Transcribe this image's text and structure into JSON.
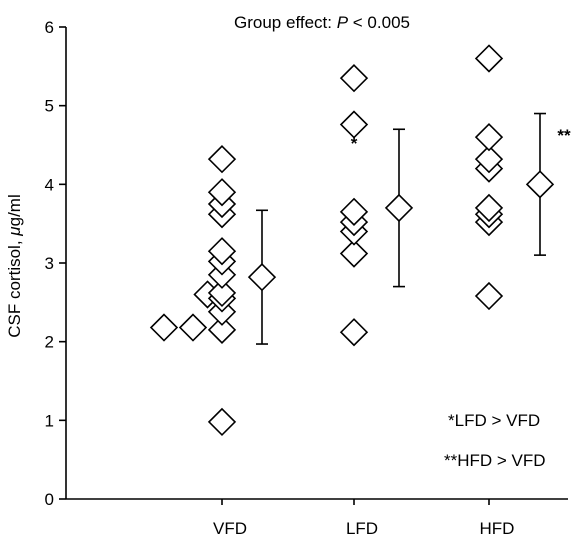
{
  "chart_data": {
    "type": "scatter",
    "title": "Group effect: P < 0.005",
    "title_prefix": "Group effect: ",
    "title_italic": "P",
    "title_suffix": " < 0.005",
    "ylabel_prefix": "CSF cortisol, ",
    "ylabel_greek": "μ",
    "ylabel_suffix": "g/ml",
    "ylim": [
      0,
      6
    ],
    "yticks": [
      "0",
      "1",
      "2",
      "3",
      "4",
      "5",
      "6"
    ],
    "categories": [
      "VFD",
      "LFD",
      "HFD"
    ],
    "grid": false,
    "points": [
      {
        "group": "VFD",
        "offset": -2,
        "y": 2.18
      },
      {
        "group": "VFD",
        "offset": -1,
        "y": 2.18
      },
      {
        "group": "VFD",
        "offset": -0.5,
        "y": 2.6
      },
      {
        "group": "VFD",
        "offset": 0,
        "y": 0.98
      },
      {
        "group": "VFD",
        "offset": 0,
        "y": 2.15
      },
      {
        "group": "VFD",
        "offset": 0,
        "y": 2.38
      },
      {
        "group": "VFD",
        "offset": 0,
        "y": 2.55
      },
      {
        "group": "VFD",
        "offset": 0,
        "y": 2.62
      },
      {
        "group": "VFD",
        "offset": 0,
        "y": 2.85
      },
      {
        "group": "VFD",
        "offset": 0,
        "y": 3.02
      },
      {
        "group": "VFD",
        "offset": 0,
        "y": 3.15
      },
      {
        "group": "VFD",
        "offset": 0,
        "y": 3.62
      },
      {
        "group": "VFD",
        "offset": 0,
        "y": 3.75
      },
      {
        "group": "VFD",
        "offset": 0,
        "y": 3.9
      },
      {
        "group": "VFD",
        "offset": 0,
        "y": 4.32
      },
      {
        "group": "LFD",
        "offset": 0,
        "y": 2.12
      },
      {
        "group": "LFD",
        "offset": 0,
        "y": 3.12
      },
      {
        "group": "LFD",
        "offset": 0,
        "y": 3.4
      },
      {
        "group": "LFD",
        "offset": 0,
        "y": 3.52
      },
      {
        "group": "LFD",
        "offset": 0,
        "y": 3.65
      },
      {
        "group": "LFD",
        "offset": 0,
        "y": 4.76
      },
      {
        "group": "LFD",
        "offset": 0,
        "y": 5.35
      },
      {
        "group": "HFD",
        "offset": 0,
        "y": 2.58
      },
      {
        "group": "HFD",
        "offset": 0,
        "y": 3.52
      },
      {
        "group": "HFD",
        "offset": 0,
        "y": 3.62
      },
      {
        "group": "HFD",
        "offset": 0,
        "y": 3.7
      },
      {
        "group": "HFD",
        "offset": 0,
        "y": 4.2
      },
      {
        "group": "HFD",
        "offset": 0,
        "y": 4.32
      },
      {
        "group": "HFD",
        "offset": 0,
        "y": 4.6
      },
      {
        "group": "HFD",
        "offset": 0,
        "y": 5.6
      }
    ],
    "summary": [
      {
        "group": "VFD",
        "mean": 2.82,
        "low": 1.97,
        "high": 3.67
      },
      {
        "group": "LFD",
        "mean": 3.7,
        "low": 2.7,
        "high": 4.7
      },
      {
        "group": "HFD",
        "mean": 4.0,
        "low": 3.1,
        "high": 4.9
      }
    ],
    "significance_marks": [
      {
        "group": "LFD",
        "text": "*",
        "y": 4.45
      },
      {
        "group": "HFD",
        "text": "**",
        "y": 4.55
      }
    ],
    "annotations": [
      "*LFD > VFD",
      "**HFD > VFD"
    ]
  }
}
